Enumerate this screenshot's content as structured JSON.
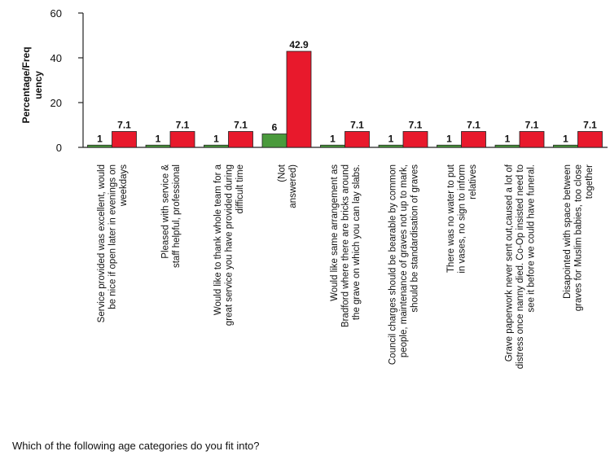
{
  "chart_data": {
    "type": "bar",
    "ylabel": [
      "Percentage/Freq",
      "uency"
    ],
    "ylim": [
      0,
      60
    ],
    "yticks": [
      0,
      20,
      40,
      60
    ],
    "grid": false,
    "categories": [
      [
        "Service provided was excellent, would",
        "be nice if open later in evenings on",
        "weekdays"
      ],
      [
        "Pleased with service &",
        "staff helpful, professional"
      ],
      [
        "Would like to thank whole team for a",
        "great service you have provided during",
        "difficult time"
      ],
      [
        "(Not",
        "answered)"
      ],
      [
        "Would like same arrangement as",
        "Bradford where there are bricks around",
        "the grave on which you can lay slabs."
      ],
      [
        "Council charges should be bearable by common",
        "people, maintenance of graves not up to mark,",
        "should be standardisation of graves"
      ],
      [
        "There was no water to put",
        "in vases, no sign to inform",
        "relatives"
      ],
      [
        "Grave paperwork never sent out,caused a lot of",
        "distress once nanny died. Co-Op insisted need to",
        "see it before we could have funeral."
      ],
      [
        "Disapointed with space between",
        "graves for Muslim babies, too close",
        "together"
      ]
    ],
    "series": [
      {
        "values": [
          1,
          1,
          1,
          6,
          1,
          1,
          1,
          1,
          1
        ],
        "color": "#4a9a3c"
      },
      {
        "values": [
          7.1,
          7.1,
          7.1,
          42.9,
          7.1,
          7.1,
          7.1,
          7.1,
          7.1
        ],
        "color": "#e8192c"
      }
    ]
  },
  "footer": {
    "question": "Which of the following age categories do you fit into?"
  }
}
